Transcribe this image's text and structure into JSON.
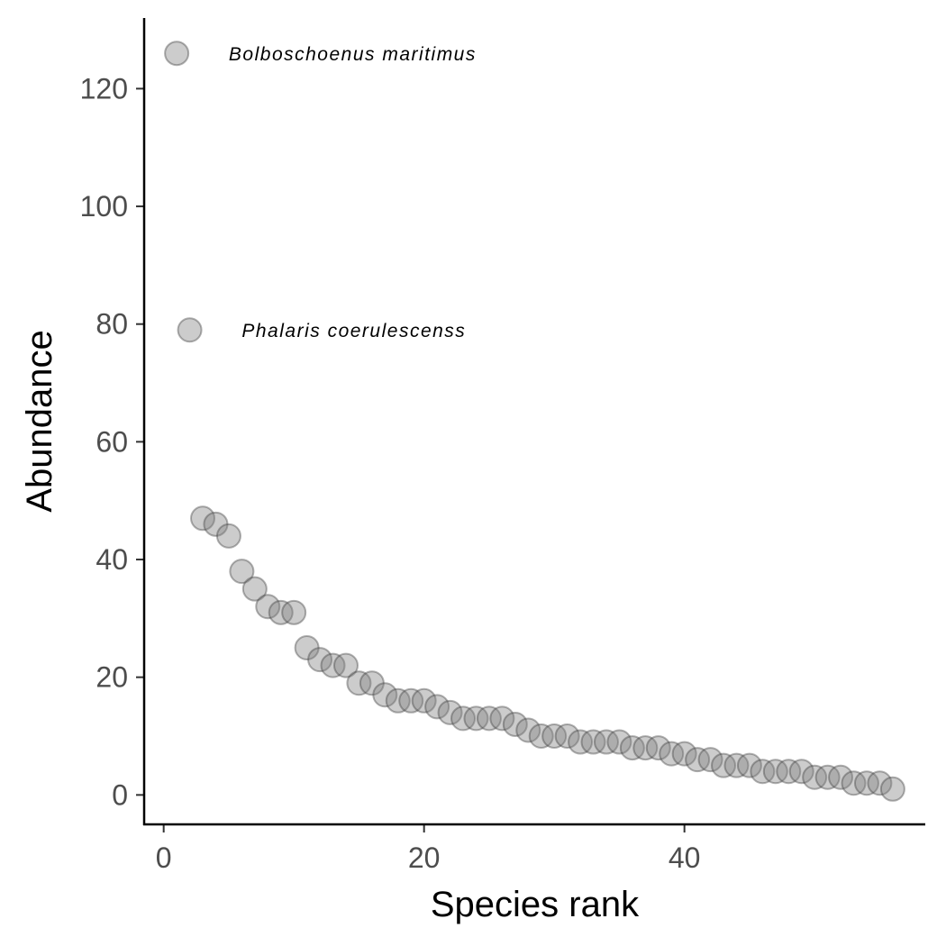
{
  "chart_data": {
    "type": "scatter",
    "xlabel": "Species rank",
    "ylabel": "Abundance",
    "xlim": [
      -1.5,
      58.5
    ],
    "ylim": [
      -5,
      132
    ],
    "x_ticks": [
      0,
      20,
      40
    ],
    "y_ticks": [
      0,
      20,
      40,
      60,
      80,
      100,
      120
    ],
    "grid": false,
    "legend": "none",
    "point_color": "#808080",
    "series": [
      {
        "x": [
          1,
          2,
          3,
          4,
          5,
          6,
          7,
          8,
          9,
          10,
          11,
          12,
          13,
          14,
          15,
          16,
          17,
          18,
          19,
          20,
          21,
          22,
          23,
          24,
          25,
          26,
          27,
          28,
          29,
          30,
          31,
          32,
          33,
          34,
          35,
          36,
          37,
          38,
          39,
          40,
          41,
          42,
          43,
          44,
          45,
          46,
          47,
          48,
          49,
          50,
          51,
          52,
          53,
          54,
          55,
          56
        ],
        "y": [
          126,
          79,
          47,
          46,
          44,
          38,
          35,
          32,
          31,
          31,
          25,
          23,
          22,
          22,
          19,
          19,
          17,
          16,
          16,
          16,
          15,
          14,
          13,
          13,
          13,
          13,
          12,
          11,
          10,
          10,
          10,
          9,
          9,
          9,
          9,
          8,
          8,
          8,
          7,
          7,
          6,
          6,
          5,
          5,
          5,
          4,
          4,
          4,
          4,
          3,
          3,
          3,
          2,
          2,
          2,
          1
        ]
      }
    ],
    "annotations": [
      {
        "x": 5,
        "y": 126,
        "text": "Bolboschoenus maritimus"
      },
      {
        "x": 6,
        "y": 79,
        "text": "Phalaris coerulescenss"
      }
    ]
  }
}
